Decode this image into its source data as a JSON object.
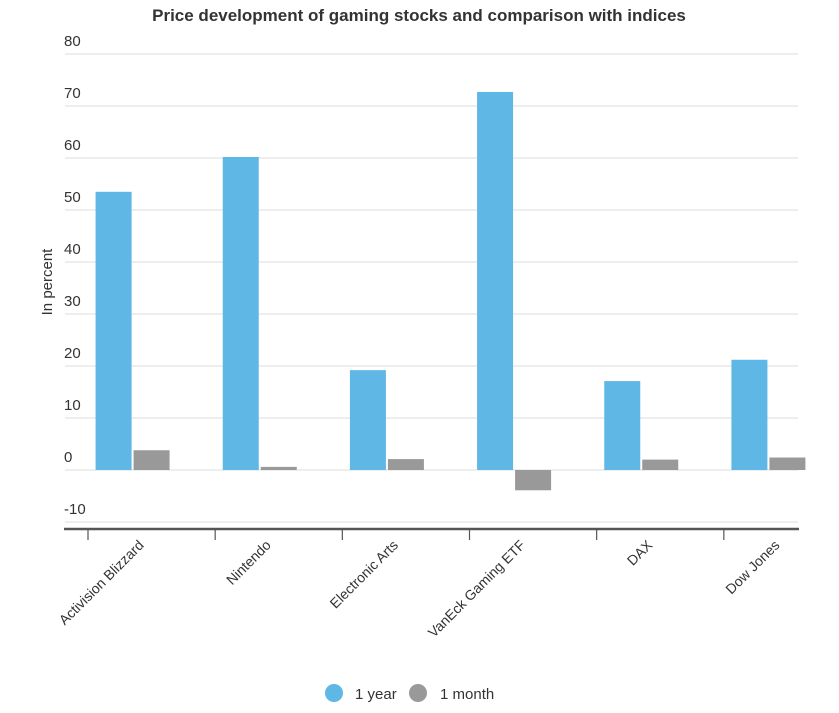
{
  "chart_data": {
    "type": "bar",
    "title": "Price development of gaming stocks and comparison with indices",
    "ylabel": "In percent",
    "xlabel": "",
    "ylim": [
      -10,
      80
    ],
    "yticks": [
      80,
      70,
      60,
      50,
      40,
      30,
      20,
      10,
      0,
      -10
    ],
    "grid": true,
    "legend_position": "bottom",
    "categories": [
      "Activision Blizzard",
      "Nintendo",
      "Electronic Arts",
      "VanEck Gaming ETF",
      "DAX",
      "Dow Jones"
    ],
    "series": [
      {
        "name": "1 year",
        "color": "#5eb7e5",
        "values": [
          53.5,
          60.2,
          19.2,
          72.7,
          17.1,
          21.2
        ]
      },
      {
        "name": "1 month",
        "color": "#999999",
        "values": [
          3.8,
          0.6,
          2.1,
          -3.9,
          2.0,
          2.4
        ]
      }
    ]
  }
}
